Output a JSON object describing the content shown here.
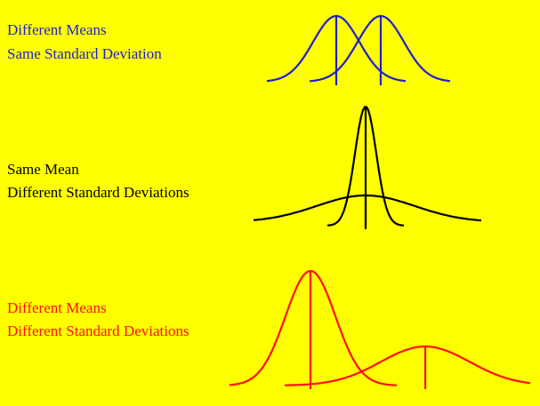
{
  "panels": [
    {
      "lines": [
        "Different Means",
        "Same Standard Deviation"
      ]
    },
    {
      "lines": [
        "Same Mean",
        "Different Standard Deviations"
      ]
    },
    {
      "lines": [
        "Different Means",
        "Different Standard Deviations"
      ]
    }
  ]
}
